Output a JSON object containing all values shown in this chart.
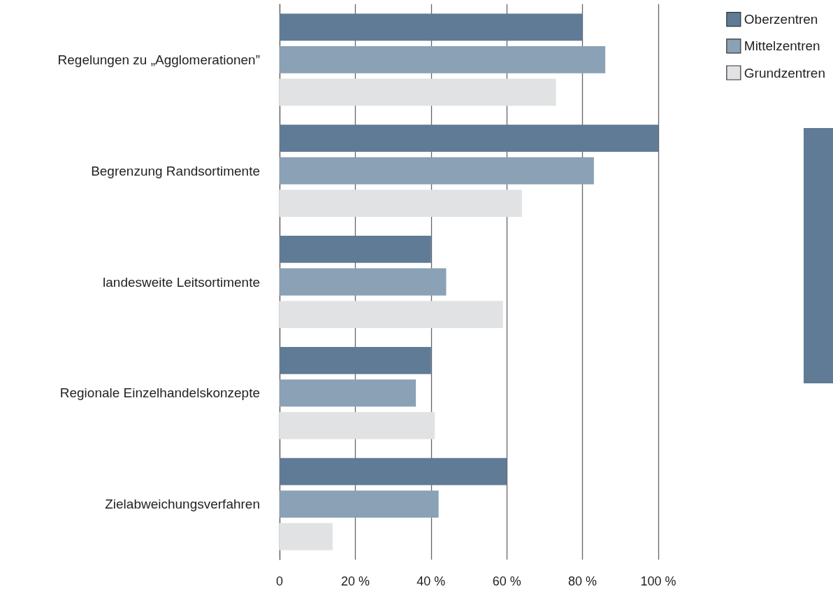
{
  "chart_data": {
    "type": "bar",
    "orientation": "horizontal",
    "categories": [
      "Regelungen zu „Agglomerationen”",
      "Begrenzung Randsortimente",
      "landesweite Leitsortimente",
      "Regionale Einzelhandelskonzepte",
      "Zielabweichungsverfahren"
    ],
    "series": [
      {
        "name": "Oberzentren",
        "color": "#5f7b96",
        "values": [
          80,
          100,
          40,
          40,
          60
        ]
      },
      {
        "name": "Mittelzentren",
        "color": "#8aa1b6",
        "values": [
          86,
          83,
          44,
          36,
          42
        ]
      },
      {
        "name": "Grundzentren",
        "color": "#e1e2e4",
        "values": [
          73,
          64,
          59,
          41,
          14
        ]
      }
    ],
    "xlim": [
      0,
      100
    ],
    "xticks": [
      0,
      {
        "value": 20,
        "label": "20 %"
      },
      {
        "value": 40,
        "label": "40 %"
      },
      {
        "value": 60,
        "label": "60 %"
      },
      {
        "value": 80,
        "label": "80 %"
      },
      {
        "value": 100,
        "label": "100 %"
      }
    ],
    "grid": "x",
    "legend": "top right"
  }
}
